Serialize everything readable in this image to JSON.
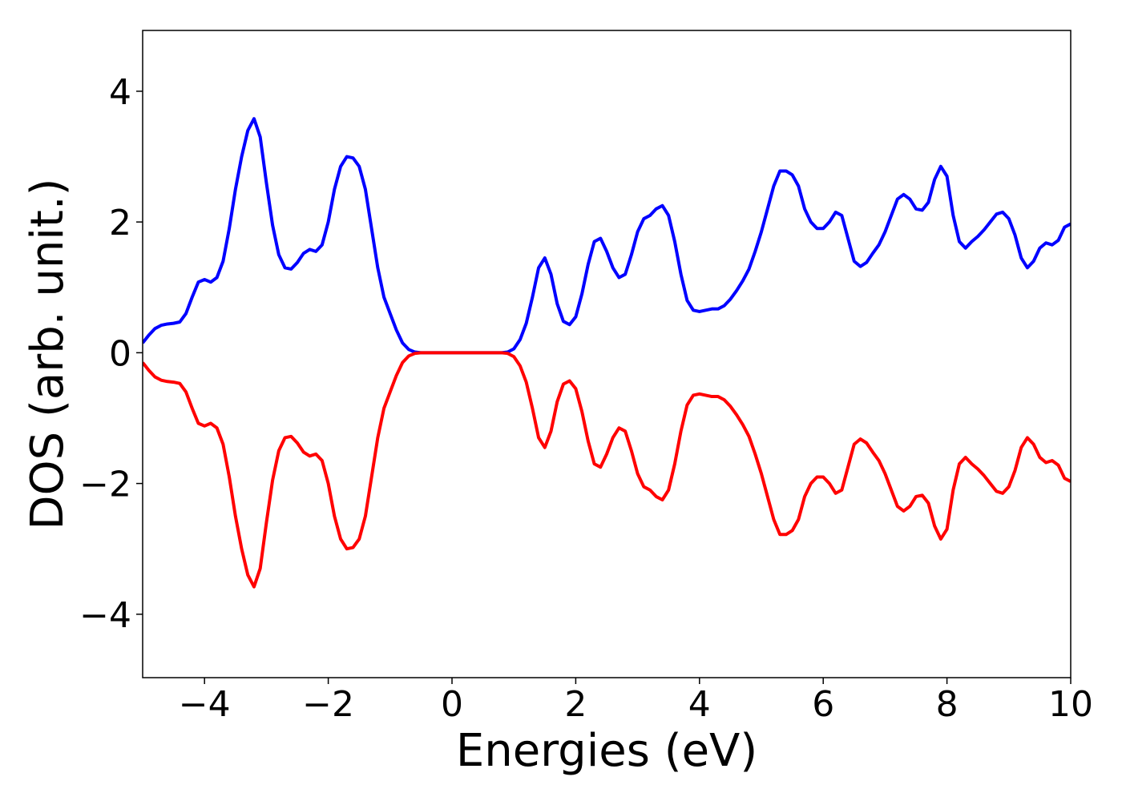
{
  "chart_data": {
    "type": "line",
    "xlabel": "Energies (eV)",
    "ylabel": "DOS (arb. unit.)",
    "x": [
      -5.0,
      -4.9,
      -4.8,
      -4.7,
      -4.6,
      -4.5,
      -4.4,
      -4.3,
      -4.2,
      -4.1,
      -4.0,
      -3.9,
      -3.8,
      -3.7,
      -3.6,
      -3.5,
      -3.4,
      -3.3,
      -3.2,
      -3.1,
      -3.0,
      -2.9,
      -2.8,
      -2.7,
      -2.6,
      -2.5,
      -2.4,
      -2.3,
      -2.2,
      -2.1,
      -2.0,
      -1.9,
      -1.8,
      -1.7,
      -1.6,
      -1.5,
      -1.4,
      -1.3,
      -1.2,
      -1.1,
      -1.0,
      -0.9,
      -0.8,
      -0.7,
      -0.6,
      -0.5,
      -0.4,
      -0.3,
      -0.2,
      -0.1,
      0.0,
      0.1,
      0.2,
      0.3,
      0.4,
      0.5,
      0.6,
      0.7,
      0.8,
      0.9,
      1.0,
      1.1,
      1.2,
      1.3,
      1.4,
      1.5,
      1.6,
      1.7,
      1.8,
      1.9,
      2.0,
      2.1,
      2.2,
      2.3,
      2.4,
      2.5,
      2.6,
      2.7,
      2.8,
      2.9,
      3.0,
      3.1,
      3.2,
      3.3,
      3.4,
      3.5,
      3.6,
      3.7,
      3.8,
      3.9,
      4.0,
      4.1,
      4.2,
      4.3,
      4.4,
      4.5,
      4.6,
      4.7,
      4.8,
      4.9,
      5.0,
      5.1,
      5.2,
      5.3,
      5.4,
      5.5,
      5.6,
      5.7,
      5.8,
      5.9,
      6.0,
      6.1,
      6.2,
      6.3,
      6.4,
      6.5,
      6.6,
      6.7,
      6.8,
      6.9,
      7.0,
      7.1,
      7.2,
      7.3,
      7.4,
      7.5,
      7.6,
      7.7,
      7.8,
      7.9,
      8.0,
      8.1,
      8.2,
      8.3,
      8.4,
      8.5,
      8.6,
      8.7,
      8.8,
      8.9,
      9.0,
      9.1,
      9.2,
      9.3,
      9.4,
      9.5,
      9.6,
      9.7,
      9.8,
      9.9,
      10.0
    ],
    "series": [
      {
        "color": "#0000ff",
        "values": [
          0.15,
          0.27,
          0.37,
          0.42,
          0.44,
          0.45,
          0.47,
          0.6,
          0.85,
          1.08,
          1.12,
          1.08,
          1.15,
          1.4,
          1.9,
          2.5,
          3.0,
          3.4,
          3.58,
          3.3,
          2.6,
          1.95,
          1.5,
          1.3,
          1.28,
          1.38,
          1.52,
          1.58,
          1.55,
          1.65,
          2.0,
          2.5,
          2.85,
          3.0,
          2.98,
          2.85,
          2.5,
          1.9,
          1.3,
          0.85,
          0.6,
          0.35,
          0.15,
          0.05,
          0.01,
          0,
          0,
          0,
          0,
          0,
          0,
          0,
          0,
          0,
          0,
          0,
          0,
          0,
          0,
          0.01,
          0.06,
          0.2,
          0.45,
          0.85,
          1.3,
          1.45,
          1.2,
          0.75,
          0.48,
          0.43,
          0.55,
          0.9,
          1.35,
          1.7,
          1.75,
          1.55,
          1.3,
          1.15,
          1.2,
          1.5,
          1.85,
          2.05,
          2.1,
          2.2,
          2.25,
          2.1,
          1.7,
          1.2,
          0.8,
          0.65,
          0.63,
          0.65,
          0.67,
          0.67,
          0.72,
          0.82,
          0.95,
          1.1,
          1.28,
          1.55,
          1.85,
          2.2,
          2.55,
          2.78,
          2.78,
          2.72,
          2.55,
          2.2,
          2.0,
          1.9,
          1.9,
          2.0,
          2.15,
          2.1,
          1.75,
          1.4,
          1.32,
          1.38,
          1.52,
          1.65,
          1.85,
          2.1,
          2.35,
          2.42,
          2.35,
          2.2,
          2.18,
          2.3,
          2.65,
          2.85,
          2.7,
          2.1,
          1.7,
          1.6,
          1.7,
          1.78,
          1.88,
          2.0,
          2.12,
          2.15,
          2.05,
          1.8,
          1.45,
          1.3,
          1.4,
          1.6,
          1.68,
          1.65,
          1.72,
          1.92,
          1.97
        ]
      },
      {
        "color": "#ff0000",
        "values": [
          -0.15,
          -0.27,
          -0.37,
          -0.42,
          -0.44,
          -0.45,
          -0.47,
          -0.6,
          -0.85,
          -1.08,
          -1.12,
          -1.08,
          -1.15,
          -1.4,
          -1.9,
          -2.5,
          -3.0,
          -3.4,
          -3.58,
          -3.3,
          -2.6,
          -1.95,
          -1.5,
          -1.3,
          -1.28,
          -1.38,
          -1.52,
          -1.58,
          -1.55,
          -1.65,
          -2.0,
          -2.5,
          -2.85,
          -3.0,
          -2.98,
          -2.85,
          -2.5,
          -1.9,
          -1.3,
          -0.85,
          -0.6,
          -0.35,
          -0.15,
          -0.05,
          -0.01,
          0,
          0,
          0,
          0,
          0,
          0,
          0,
          0,
          0,
          0,
          0,
          0,
          0,
          0,
          -0.01,
          -0.06,
          -0.2,
          -0.45,
          -0.85,
          -1.3,
          -1.45,
          -1.2,
          -0.75,
          -0.48,
          -0.43,
          -0.55,
          -0.9,
          -1.35,
          -1.7,
          -1.75,
          -1.55,
          -1.3,
          -1.15,
          -1.2,
          -1.5,
          -1.85,
          -2.05,
          -2.1,
          -2.2,
          -2.25,
          -2.1,
          -1.7,
          -1.2,
          -0.8,
          -0.65,
          -0.63,
          -0.65,
          -0.67,
          -0.67,
          -0.72,
          -0.82,
          -0.95,
          -1.1,
          -1.28,
          -1.55,
          -1.85,
          -2.2,
          -2.55,
          -2.78,
          -2.78,
          -2.72,
          -2.55,
          -2.2,
          -2.0,
          -1.9,
          -1.9,
          -2.0,
          -2.15,
          -2.1,
          -1.75,
          -1.4,
          -1.32,
          -1.38,
          -1.52,
          -1.65,
          -1.85,
          -2.1,
          -2.35,
          -2.42,
          -2.35,
          -2.2,
          -2.18,
          -2.3,
          -2.65,
          -2.85,
          -2.7,
          -2.1,
          -1.7,
          -1.6,
          -1.7,
          -1.78,
          -1.88,
          -2.0,
          -2.12,
          -2.15,
          -2.05,
          -1.8,
          -1.45,
          -1.3,
          -1.4,
          -1.6,
          -1.68,
          -1.65,
          -1.72,
          -1.92,
          -1.97
        ]
      }
    ],
    "xlim": [
      -5,
      10
    ],
    "xticks": [
      {
        "value": -4,
        "label": "−4"
      },
      {
        "value": -2,
        "label": "−2"
      },
      0,
      2,
      4,
      6,
      8,
      10
    ],
    "ylim": [
      -4.97,
      4.93
    ],
    "yticks": [
      {
        "value": -4,
        "label": "−4"
      },
      {
        "value": -2,
        "label": "−2"
      },
      0,
      2,
      4
    ],
    "grid": false
  }
}
